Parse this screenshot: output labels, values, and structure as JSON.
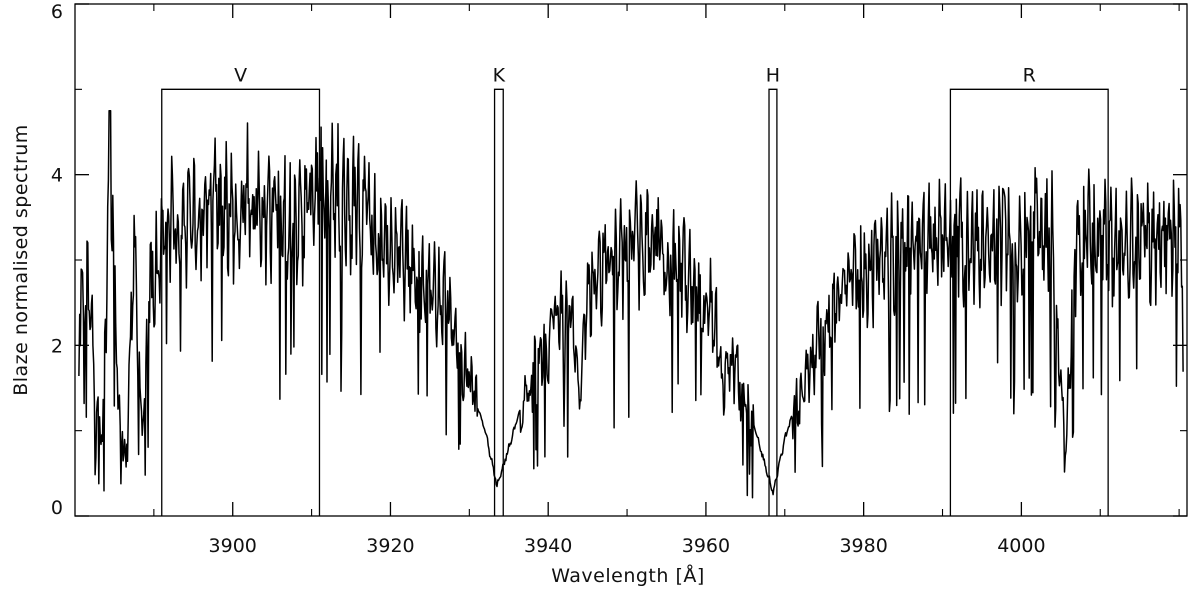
{
  "chart_data": {
    "type": "line",
    "title": "",
    "xlabel": "Wavelength [Å]",
    "ylabel": "Blaze normalised spectrum",
    "xlim": [
      3880,
      4021
    ],
    "ylim": [
      0,
      6
    ],
    "x_ticks": [
      3900,
      3920,
      3940,
      3960,
      3980,
      4000
    ],
    "x_tick_labels": [
      "3900",
      "3920",
      "3940",
      "3960",
      "3980",
      "4000"
    ],
    "y_ticks": [
      0,
      2,
      4,
      6
    ],
    "y_tick_labels": [
      "0",
      "2",
      "4",
      "6"
    ],
    "grid": false,
    "line_color": "#000000",
    "passbands": [
      {
        "label": "V",
        "x_start": 3891.0,
        "x_end": 3911.0,
        "top": 5.0
      },
      {
        "label": "K",
        "x_start": 3933.2,
        "x_end": 3934.3,
        "top": 5.0
      },
      {
        "label": "H",
        "x_start": 3968.0,
        "x_end": 3969.0,
        "top": 5.0
      },
      {
        "label": "R",
        "x_start": 3991.0,
        "x_end": 4011.0,
        "top": 5.0
      }
    ],
    "series": [
      {
        "x": [
          3880.5,
          3881.5,
          3882.5,
          3883.5,
          3884.5,
          3885.5,
          3886.5,
          3887.5,
          3888.5,
          3889.5,
          3890.5,
          3892,
          3894,
          3896,
          3898,
          3900,
          3902,
          3904,
          3906,
          3908,
          3910,
          3912,
          3914,
          3916,
          3918,
          3920,
          3922,
          3924,
          3926,
          3928,
          3930,
          3932,
          3933.5,
          3935,
          3937,
          3939,
          3941,
          3943,
          3944,
          3945,
          3947,
          3949,
          3951,
          3953,
          3955,
          3957,
          3959,
          3961,
          3962,
          3963,
          3964,
          3966,
          3968.5,
          3970,
          3972,
          3974,
          3976,
          3978,
          3980,
          3983,
          3986,
          3989,
          3992,
          3995,
          3998,
          4001,
          4004,
          4005.5,
          4007,
          4010,
          4013,
          4016,
          4019,
          4020.5
        ],
        "y": [
          2.3,
          3.1,
          1.7,
          0.9,
          4.6,
          1.3,
          0.6,
          3.4,
          0.9,
          2.7,
          3.0,
          3.6,
          3.3,
          3.5,
          3.7,
          3.6,
          3.8,
          3.5,
          3.6,
          3.4,
          3.7,
          3.9,
          3.8,
          3.6,
          3.4,
          3.2,
          3.0,
          2.8,
          2.7,
          2.3,
          1.6,
          1.0,
          0.35,
          0.8,
          1.4,
          1.9,
          2.3,
          2.4,
          1.3,
          2.8,
          3.0,
          3.1,
          3.2,
          3.3,
          3.1,
          2.9,
          2.6,
          2.4,
          1.6,
          1.8,
          1.7,
          1.1,
          0.28,
          0.9,
          1.5,
          2.0,
          2.4,
          2.7,
          2.9,
          3.1,
          3.2,
          3.2,
          3.3,
          3.2,
          3.3,
          3.4,
          3.3,
          0.7,
          3.3,
          3.3,
          3.2,
          3.3,
          3.3,
          3.4
        ]
      }
    ]
  }
}
